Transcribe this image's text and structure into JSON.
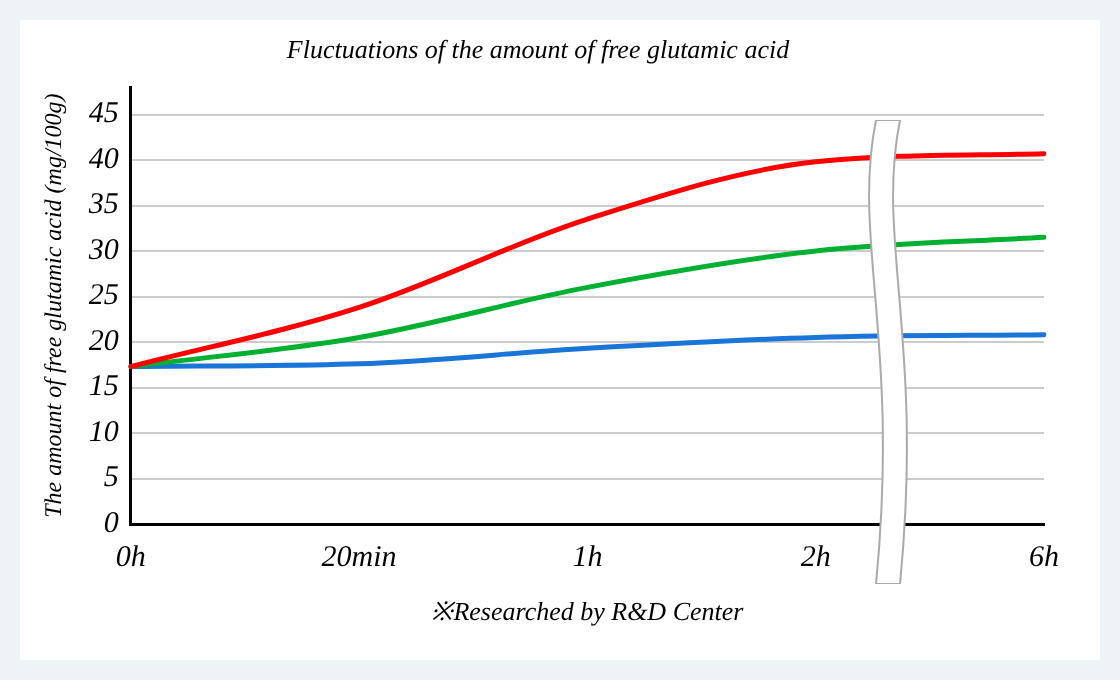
{
  "chart_data": {
    "type": "line",
    "title": "Fluctuations of the amount of free glutamic acid",
    "ylabel": "The amount of free glutamic acid (mg/100g)",
    "annotations": [
      "※Researched by R&D Center"
    ],
    "categories": [
      "0h",
      "20min",
      "1h",
      "2h",
      "6h"
    ],
    "series": [
      {
        "color": "#ff0000",
        "values": [
          17.3,
          23.8,
          33.5,
          39.8,
          40.7
        ]
      },
      {
        "color": "#00b030",
        "values": [
          17.3,
          20.5,
          26,
          30,
          31.5
        ]
      },
      {
        "color": "#1a75d8",
        "values": [
          17.3,
          17.6,
          19.3,
          20.5,
          20.8
        ]
      }
    ],
    "ylim": [
      0,
      48
    ],
    "yticks": [
      0,
      5,
      10,
      15,
      20,
      25,
      30,
      35,
      40,
      45
    ],
    "grid": "y",
    "legend": false,
    "marker": "none",
    "line_style": "solid"
  }
}
